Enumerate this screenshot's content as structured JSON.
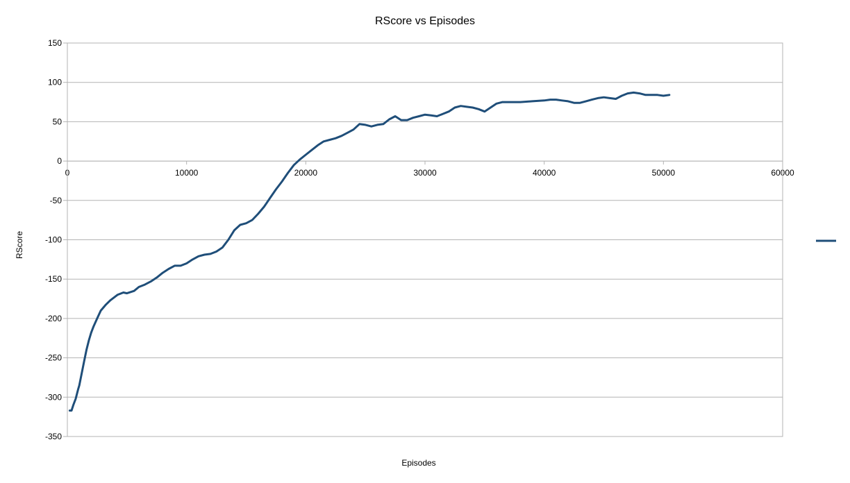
{
  "chart_data": {
    "type": "line",
    "title": "RScore vs Episodes",
    "xlabel": "Episodes",
    "ylabel": "RScore",
    "xlim": [
      0,
      60000
    ],
    "ylim": [
      -350,
      150
    ],
    "x_ticks": [
      0,
      10000,
      20000,
      30000,
      40000,
      50000,
      60000
    ],
    "y_ticks": [
      150,
      100,
      50,
      0,
      -50,
      -100,
      -150,
      -200,
      -250,
      -300,
      -350
    ],
    "grid": "horizontal",
    "legend": "right",
    "series": [
      {
        "color": "#1f4e79",
        "x": [
          200,
          350,
          500,
          700,
          900,
          1000,
          1200,
          1400,
          1600,
          1800,
          2000,
          2200,
          2500,
          2800,
          3200,
          3600,
          4200,
          4700,
          5000,
          5600,
          6000,
          6500,
          7000,
          7500,
          8000,
          8500,
          9000,
          9500,
          10000,
          10500,
          11000,
          11500,
          12000,
          12500,
          13000,
          13500,
          14000,
          14500,
          15000,
          15500,
          16000,
          16500,
          17000,
          17500,
          18000,
          18500,
          19000,
          19500,
          20000,
          20500,
          21000,
          21500,
          22000,
          22500,
          23000,
          23500,
          24000,
          24500,
          25000,
          25500,
          26000,
          26500,
          27000,
          27500,
          28000,
          28500,
          29000,
          29500,
          30000,
          30500,
          31000,
          31500,
          32000,
          32500,
          33000,
          33500,
          34000,
          34500,
          35000,
          35500,
          36000,
          36500,
          37000,
          38000,
          39000,
          40000,
          40500,
          41000,
          41500,
          42000,
          42500,
          43000,
          43500,
          44000,
          44500,
          45000,
          45500,
          46000,
          46500,
          47000,
          47500,
          48000,
          48500,
          49000,
          49500,
          50000,
          50500
        ],
        "y": [
          -317,
          -317,
          -310,
          -302,
          -290,
          -285,
          -270,
          -255,
          -240,
          -228,
          -218,
          -210,
          -200,
          -190,
          -183,
          -177,
          -170,
          -167,
          -168,
          -165,
          -160,
          -157,
          -153,
          -148,
          -142,
          -137,
          -133,
          -133,
          -130,
          -125,
          -121,
          -119,
          -118,
          -115,
          -110,
          -100,
          -88,
          -81,
          -79,
          -75,
          -67,
          -58,
          -47,
          -36,
          -26,
          -15,
          -5,
          2,
          8,
          14,
          20,
          25,
          27,
          29,
          32,
          36,
          40,
          47,
          46,
          44,
          46,
          47,
          53,
          57,
          52,
          52,
          55,
          57,
          59,
          58,
          57,
          60,
          63,
          68,
          70,
          69,
          68,
          66,
          63,
          68,
          73,
          75,
          75,
          75,
          76,
          77,
          78,
          78,
          77,
          76,
          74,
          74,
          76,
          78,
          80,
          81,
          80,
          79,
          83,
          86,
          87,
          86,
          84,
          84,
          84,
          83,
          84
        ]
      }
    ]
  }
}
